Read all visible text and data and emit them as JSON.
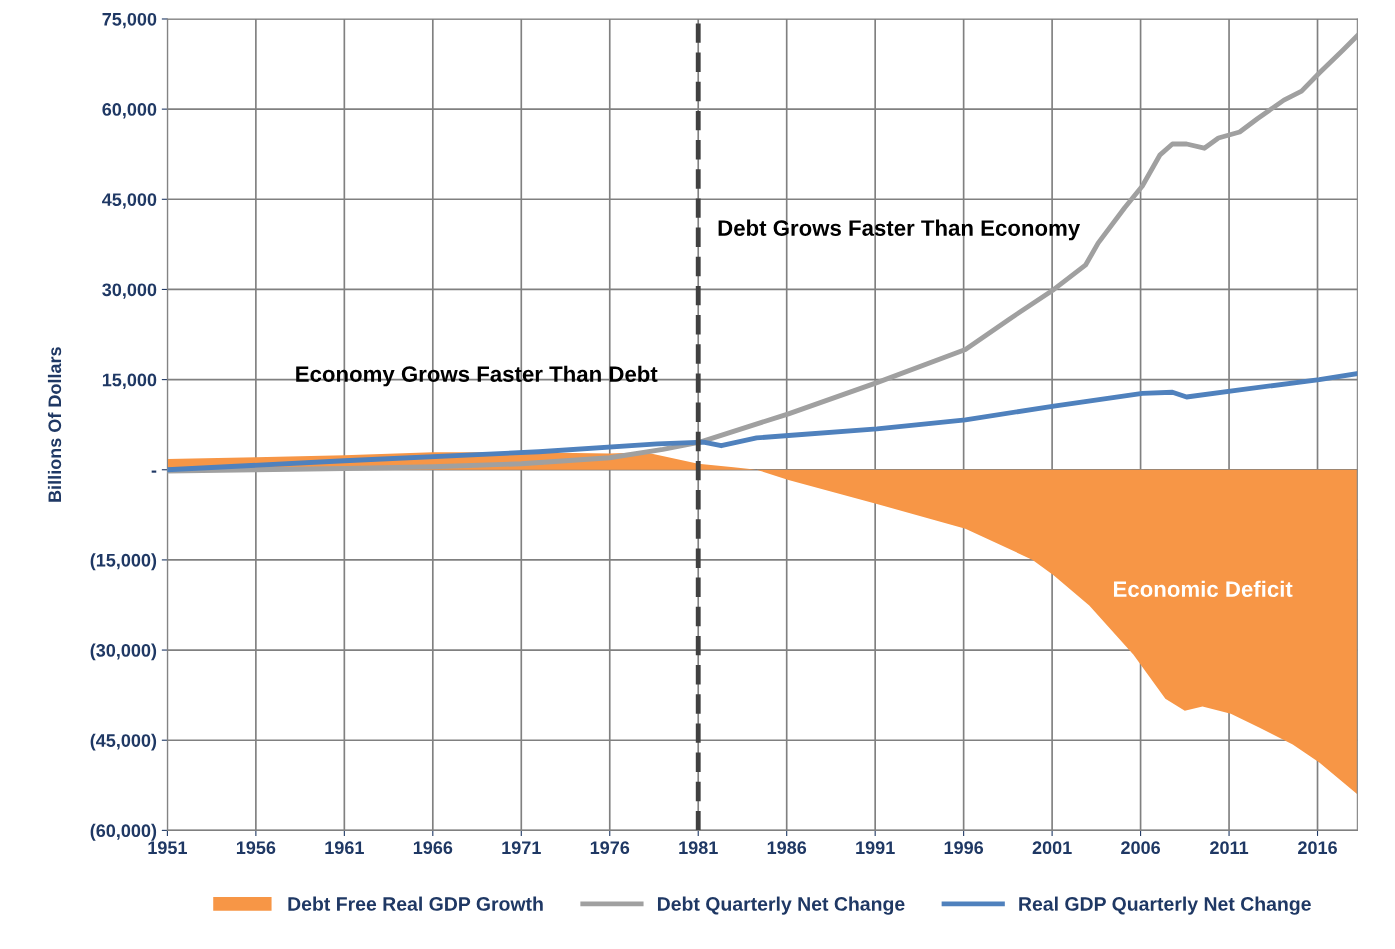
{
  "chart_data": {
    "type": "line",
    "ylabel": "Billions Of Dollars",
    "xlim": [
      1951,
      2018.25
    ],
    "xticks": [
      1951,
      1956,
      1961,
      1966,
      1971,
      1976,
      1981,
      1986,
      1991,
      1996,
      2001,
      2006,
      2011,
      2016
    ],
    "ylim": [
      -60000,
      75000
    ],
    "yticks": [
      {
        "value": -60000,
        "label": "(60,000)"
      },
      {
        "value": -45000,
        "label": "(45,000)"
      },
      {
        "value": -30000,
        "label": "(30,000)"
      },
      {
        "value": -15000,
        "label": "(15,000)"
      },
      {
        "value": 0,
        "label": "-"
      },
      {
        "value": 15000,
        "label": "15,000"
      },
      {
        "value": 30000,
        "label": "30,000"
      },
      {
        "value": 45000,
        "label": "45,000"
      },
      {
        "value": 60000,
        "label": "60,000"
      },
      {
        "value": 75000,
        "label": "75,000"
      }
    ],
    "grid": true,
    "legend": "bottom",
    "ref_lines": [
      {
        "axis": "x",
        "value": 1981,
        "color": "#404040",
        "line_style": "dashed"
      }
    ],
    "annotations": [
      "Economy Grows Faster Than Debt",
      "Debt Grows Faster Than Economy",
      "Economic Deficit"
    ],
    "series": [
      {
        "name": "Debt Free Real GDP Growth",
        "type": "area",
        "color": "#f79646",
        "x": [
          1951,
          1956,
          1961,
          1966,
          1971,
          1976,
          1978,
          1981,
          1983,
          1984.3,
          1986.1,
          1991.1,
          1996.1,
          1999.9,
          2001.1,
          2003.1,
          2005.6,
          2007.4,
          2008.5,
          2009.5,
          2011.1,
          2012.7,
          2014.6,
          2016.1,
          2018.25
        ],
        "values": [
          1800,
          2100,
          2400,
          2900,
          2900,
          2700,
          2900,
          1000,
          400,
          0,
          -1700,
          -5700,
          -9800,
          -15000,
          -17600,
          -22600,
          -30800,
          -38100,
          -40100,
          -39400,
          -40600,
          -42900,
          -45700,
          -48700,
          -54000
        ]
      },
      {
        "name": "Debt Quarterly Net Change",
        "color": "#a0a0a0",
        "x": [
          1951,
          1956,
          1961,
          1966,
          1971,
          1976,
          1979,
          1981.1,
          1986.1,
          1991.1,
          1996.1,
          1998.6,
          2001.1,
          2002.9,
          2003.6,
          2005.1,
          2006.1,
          2007.1,
          2007.8,
          2008.6,
          2009.6,
          2010.4,
          2011.6,
          2012.6,
          2014.1,
          2015.1,
          2016.1,
          2017.4,
          2018.25
        ],
        "values": [
          -200,
          0,
          200,
          500,
          1000,
          2000,
          3400,
          4600,
          9300,
          14500,
          20000,
          25100,
          30000,
          34100,
          37700,
          43600,
          47200,
          52400,
          54200,
          54200,
          53500,
          55200,
          56200,
          58400,
          61500,
          63000,
          66000,
          69700,
          72200
        ]
      },
      {
        "name": "Real GDP Quarterly Net Change",
        "color": "#4f81bd",
        "x": [
          1951,
          1961,
          1972,
          1978.7,
          1981.3,
          1982.3,
          1984.3,
          1986.1,
          1991.1,
          1996.1,
          2001.1,
          2006.1,
          2007.8,
          2008.6,
          2011.6,
          2016.1,
          2018.25
        ],
        "values": [
          0,
          1500,
          3000,
          4300,
          4600,
          4000,
          5300,
          5700,
          6800,
          8300,
          10600,
          12700,
          12900,
          12100,
          13300,
          15000,
          16000
        ]
      }
    ]
  }
}
